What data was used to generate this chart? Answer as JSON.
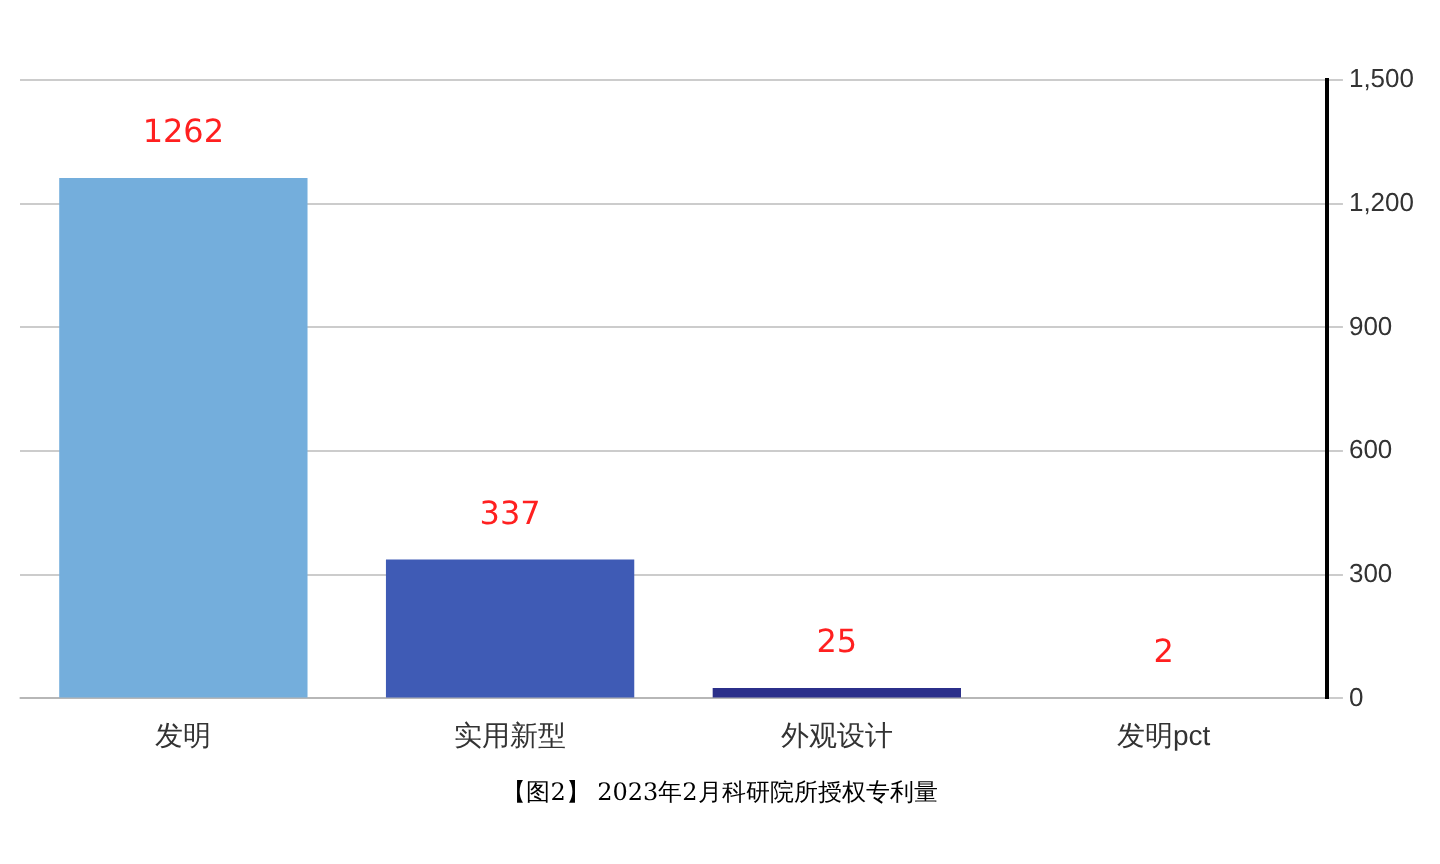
{
  "chart_data": {
    "type": "bar",
    "categories": [
      "发明",
      "实用新型",
      "外观设计",
      "发明pct"
    ],
    "values": [
      1262,
      337,
      25,
      2
    ],
    "colors": [
      "#74aedc",
      "#3f5bb5",
      "#2b2f8a",
      "#2b2f8a"
    ],
    "ylim": [
      0,
      1500
    ],
    "yticks": [
      0,
      {
        "value": 300,
        "label": "300"
      },
      {
        "value": 600,
        "label": "600"
      },
      {
        "value": 900,
        "label": "900"
      },
      {
        "value": 1200,
        "label": "1,200"
      },
      {
        "value": 1500,
        "label": "1,500"
      }
    ],
    "grid": "y",
    "data_labels": true,
    "legend": false,
    "annotations": [
      "【图2】 2023年2月科研院所授权专利量"
    ]
  }
}
